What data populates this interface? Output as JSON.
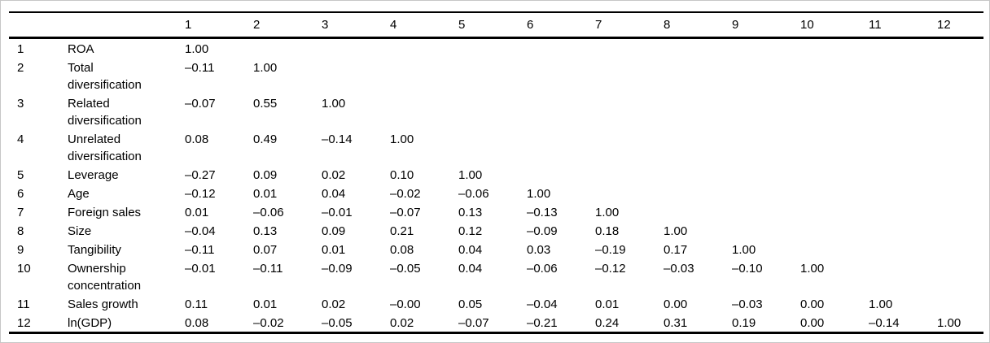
{
  "page": {
    "background": "#ffffff",
    "frame_border_color": "#c6c6c6",
    "rule_color": "#000000",
    "text_color": "#000000"
  },
  "table": {
    "kind": "correlation-matrix",
    "column_headers": [
      "1",
      "2",
      "3",
      "4",
      "5",
      "6",
      "7",
      "8",
      "9",
      "10",
      "11",
      "12"
    ],
    "rows": [
      {
        "num": "1",
        "label": "ROA",
        "values": [
          "1.00"
        ]
      },
      {
        "num": "2",
        "label": "Total\ndiversification",
        "values": [
          "–0.11",
          "1.00"
        ]
      },
      {
        "num": "3",
        "label": "Related\ndiversification",
        "values": [
          "–0.07",
          "0.55",
          "1.00"
        ]
      },
      {
        "num": "4",
        "label": "Unrelated\ndiversification",
        "values": [
          "0.08",
          "0.49",
          "–0.14",
          "1.00"
        ]
      },
      {
        "num": "5",
        "label": "Leverage",
        "values": [
          "–0.27",
          "0.09",
          "0.02",
          "0.10",
          "1.00"
        ]
      },
      {
        "num": "6",
        "label": "Age",
        "values": [
          "–0.12",
          "0.01",
          "0.04",
          "–0.02",
          "–0.06",
          "1.00"
        ]
      },
      {
        "num": "7",
        "label": "Foreign sales",
        "values": [
          "0.01",
          "–0.06",
          "–0.01",
          "–0.07",
          "0.13",
          "–0.13",
          "1.00"
        ]
      },
      {
        "num": "8",
        "label": "Size",
        "values": [
          "–0.04",
          "0.13",
          "0.09",
          "0.21",
          "0.12",
          "–0.09",
          "0.18",
          "1.00"
        ]
      },
      {
        "num": "9",
        "label": "Tangibility",
        "values": [
          "–0.11",
          "0.07",
          "0.01",
          "0.08",
          "0.04",
          "0.03",
          "–0.19",
          "0.17",
          "1.00"
        ]
      },
      {
        "num": "10",
        "label": "Ownership\nconcentration",
        "values": [
          "–0.01",
          "–0.11",
          "–0.09",
          "–0.05",
          "0.04",
          "–0.06",
          "–0.12",
          "–0.03",
          "–0.10",
          "1.00"
        ]
      },
      {
        "num": "11",
        "label": "Sales growth",
        "values": [
          "0.11",
          "0.01",
          "0.02",
          "–0.00",
          "0.05",
          "–0.04",
          "0.01",
          "0.00",
          "–0.03",
          "0.00",
          "1.00"
        ]
      },
      {
        "num": "12",
        "label": "ln(GDP)",
        "values": [
          "0.08",
          "–0.02",
          "–0.05",
          "0.02",
          "–0.07",
          "–0.21",
          "0.24",
          "0.31",
          "0.19",
          "0.00",
          "–0.14",
          "1.00"
        ]
      }
    ]
  },
  "chart_data": {
    "type": "table",
    "title": "Correlation matrix",
    "variables": [
      "ROA",
      "Total diversification",
      "Related diversification",
      "Unrelated diversification",
      "Leverage",
      "Age",
      "Foreign sales",
      "Size",
      "Tangibility",
      "Ownership concentration",
      "Sales growth",
      "ln(GDP)"
    ],
    "matrix_lower_triangle": [
      [
        1.0
      ],
      [
        -0.11,
        1.0
      ],
      [
        -0.07,
        0.55,
        1.0
      ],
      [
        0.08,
        0.49,
        -0.14,
        1.0
      ],
      [
        -0.27,
        0.09,
        0.02,
        0.1,
        1.0
      ],
      [
        -0.12,
        0.01,
        0.04,
        -0.02,
        -0.06,
        1.0
      ],
      [
        0.01,
        -0.06,
        -0.01,
        -0.07,
        0.13,
        -0.13,
        1.0
      ],
      [
        -0.04,
        0.13,
        0.09,
        0.21,
        0.12,
        -0.09,
        0.18,
        1.0
      ],
      [
        -0.11,
        0.07,
        0.01,
        0.08,
        0.04,
        0.03,
        -0.19,
        0.17,
        1.0
      ],
      [
        -0.01,
        -0.11,
        -0.09,
        -0.05,
        0.04,
        -0.06,
        -0.12,
        -0.03,
        -0.1,
        1.0
      ],
      [
        0.11,
        0.01,
        0.02,
        -0.0,
        0.05,
        -0.04,
        0.01,
        0.0,
        -0.03,
        0.0,
        1.0
      ],
      [
        0.08,
        -0.02,
        -0.05,
        0.02,
        -0.07,
        -0.21,
        0.24,
        0.31,
        0.19,
        0.0,
        -0.14,
        1.0
      ]
    ]
  }
}
